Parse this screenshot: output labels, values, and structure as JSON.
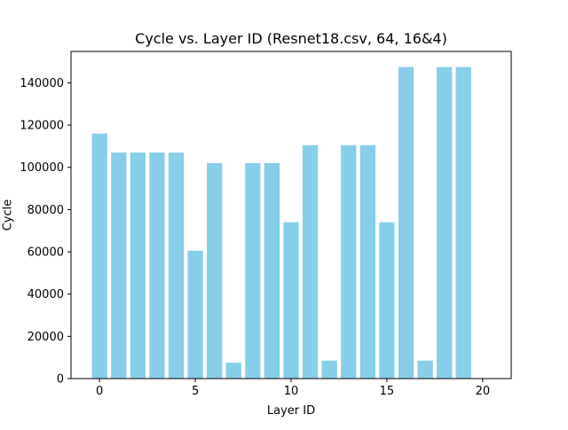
{
  "chart_data": {
    "type": "bar",
    "title": "Cycle vs. Layer ID (Resnet18.csv, 64, 16&4)",
    "xlabel": "Layer ID",
    "ylabel": "Cycle",
    "x": [
      0,
      1,
      2,
      3,
      4,
      5,
      6,
      7,
      8,
      9,
      10,
      11,
      12,
      13,
      14,
      15,
      16,
      17,
      18,
      19
    ],
    "values": [
      116000,
      107000,
      107000,
      107000,
      107000,
      60500,
      102000,
      7500,
      102000,
      102000,
      74000,
      110500,
      8500,
      110500,
      110500,
      74000,
      147500,
      8500,
      147500,
      147500
    ],
    "xlim": [
      -1.49,
      21.49
    ],
    "ylim": [
      0,
      154875
    ],
    "xticks": [
      0,
      5,
      10,
      15,
      20
    ],
    "yticks": [
      0,
      20000,
      40000,
      60000,
      80000,
      100000,
      120000,
      140000
    ],
    "bar_color": "#87ceeb",
    "grid": false,
    "legend": "none"
  }
}
